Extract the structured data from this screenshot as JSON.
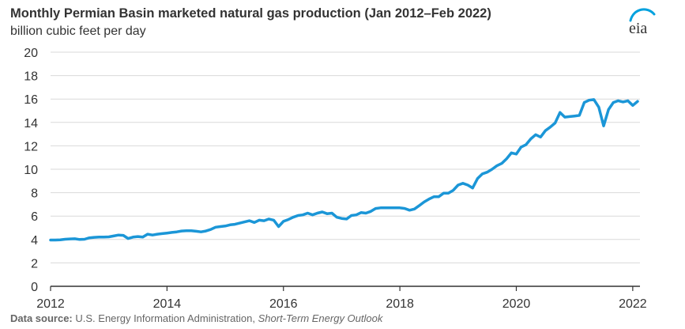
{
  "header": {
    "title": "Monthly Permian Basin marketed natural gas production (Jan 2012–Feb 2022)",
    "subtitle": "billion cubic feet per day"
  },
  "logo": {
    "text": "eia",
    "icon": "eia-logo-icon",
    "color": "#00a1de"
  },
  "source": {
    "label": "Data source:",
    "agency": "U.S. Energy Information Administration,",
    "publication": "Short-Term Energy Outlook"
  },
  "chart_data": {
    "type": "line",
    "title": "Monthly Permian Basin marketed natural gas production (Jan 2012–Feb 2022)",
    "ylabel": "billion cubic feet per day",
    "xlabel": "",
    "xlim": [
      "2012-01",
      "2022-02"
    ],
    "ylim": [
      0,
      20
    ],
    "y_ticks": [
      "0",
      "2",
      "4",
      "6",
      "8",
      "10",
      "12",
      "14",
      "16",
      "18",
      "20"
    ],
    "x_ticks": [
      "2012",
      "2014",
      "2016",
      "2018",
      "2020",
      "2022"
    ],
    "grid": "horizontal",
    "line_color": "#1b96d7",
    "series": [
      {
        "points": [
          [
            "2012-01",
            3.95
          ],
          [
            "2012-02",
            3.95
          ],
          [
            "2012-03",
            3.97
          ],
          [
            "2012-04",
            4.02
          ],
          [
            "2012-05",
            4.05
          ],
          [
            "2012-06",
            4.06
          ],
          [
            "2012-07",
            4.0
          ],
          [
            "2012-08",
            4.02
          ],
          [
            "2012-09",
            4.14
          ],
          [
            "2012-10",
            4.18
          ],
          [
            "2012-11",
            4.2
          ],
          [
            "2012-12",
            4.2
          ],
          [
            "2013-01",
            4.22
          ],
          [
            "2013-02",
            4.3
          ],
          [
            "2013-03",
            4.38
          ],
          [
            "2013-04",
            4.35
          ],
          [
            "2013-05",
            4.08
          ],
          [
            "2013-06",
            4.2
          ],
          [
            "2013-07",
            4.25
          ],
          [
            "2013-08",
            4.2
          ],
          [
            "2013-09",
            4.45
          ],
          [
            "2013-10",
            4.38
          ],
          [
            "2013-11",
            4.45
          ],
          [
            "2013-12",
            4.5
          ],
          [
            "2014-01",
            4.55
          ],
          [
            "2014-02",
            4.6
          ],
          [
            "2014-03",
            4.65
          ],
          [
            "2014-04",
            4.72
          ],
          [
            "2014-05",
            4.75
          ],
          [
            "2014-06",
            4.75
          ],
          [
            "2014-07",
            4.7
          ],
          [
            "2014-08",
            4.65
          ],
          [
            "2014-09",
            4.72
          ],
          [
            "2014-10",
            4.85
          ],
          [
            "2014-11",
            5.05
          ],
          [
            "2014-12",
            5.1
          ],
          [
            "2015-01",
            5.15
          ],
          [
            "2015-02",
            5.25
          ],
          [
            "2015-03",
            5.3
          ],
          [
            "2015-04",
            5.4
          ],
          [
            "2015-05",
            5.5
          ],
          [
            "2015-06",
            5.6
          ],
          [
            "2015-07",
            5.45
          ],
          [
            "2015-08",
            5.65
          ],
          [
            "2015-09",
            5.6
          ],
          [
            "2015-10",
            5.75
          ],
          [
            "2015-11",
            5.65
          ],
          [
            "2015-12",
            5.1
          ],
          [
            "2016-01",
            5.55
          ],
          [
            "2016-02",
            5.7
          ],
          [
            "2016-03",
            5.9
          ],
          [
            "2016-04",
            6.05
          ],
          [
            "2016-05",
            6.1
          ],
          [
            "2016-06",
            6.25
          ],
          [
            "2016-07",
            6.1
          ],
          [
            "2016-08",
            6.25
          ],
          [
            "2016-09",
            6.35
          ],
          [
            "2016-10",
            6.2
          ],
          [
            "2016-11",
            6.25
          ],
          [
            "2016-12",
            5.9
          ],
          [
            "2017-01",
            5.8
          ],
          [
            "2017-02",
            5.75
          ],
          [
            "2017-03",
            6.05
          ],
          [
            "2017-04",
            6.1
          ],
          [
            "2017-05",
            6.3
          ],
          [
            "2017-06",
            6.25
          ],
          [
            "2017-07",
            6.4
          ],
          [
            "2017-08",
            6.65
          ],
          [
            "2017-09",
            6.7
          ],
          [
            "2017-10",
            6.7
          ],
          [
            "2017-11",
            6.7
          ],
          [
            "2017-12",
            6.7
          ],
          [
            "2018-01",
            6.7
          ],
          [
            "2018-02",
            6.65
          ],
          [
            "2018-03",
            6.5
          ],
          [
            "2018-04",
            6.6
          ],
          [
            "2018-05",
            6.9
          ],
          [
            "2018-06",
            7.2
          ],
          [
            "2018-07",
            7.45
          ],
          [
            "2018-08",
            7.65
          ],
          [
            "2018-09",
            7.65
          ],
          [
            "2018-10",
            7.95
          ],
          [
            "2018-11",
            7.95
          ],
          [
            "2018-12",
            8.2
          ],
          [
            "2019-01",
            8.65
          ],
          [
            "2019-02",
            8.8
          ],
          [
            "2019-03",
            8.65
          ],
          [
            "2019-04",
            8.4
          ],
          [
            "2019-05",
            9.2
          ],
          [
            "2019-06",
            9.6
          ],
          [
            "2019-07",
            9.75
          ],
          [
            "2019-08",
            10.0
          ],
          [
            "2019-09",
            10.3
          ],
          [
            "2019-10",
            10.5
          ],
          [
            "2019-11",
            10.9
          ],
          [
            "2019-12",
            11.4
          ],
          [
            "2020-01",
            11.3
          ],
          [
            "2020-02",
            11.9
          ],
          [
            "2020-03",
            12.1
          ],
          [
            "2020-04",
            12.6
          ],
          [
            "2020-05",
            12.95
          ],
          [
            "2020-06",
            12.75
          ],
          [
            "2020-07",
            13.3
          ],
          [
            "2020-08",
            13.6
          ],
          [
            "2020-09",
            13.95
          ],
          [
            "2020-10",
            14.85
          ],
          [
            "2020-11",
            14.45
          ],
          [
            "2020-12",
            14.5
          ],
          [
            "2021-01",
            14.55
          ],
          [
            "2021-02",
            14.6
          ],
          [
            "2021-03",
            15.7
          ],
          [
            "2021-04",
            15.9
          ],
          [
            "2021-05",
            15.95
          ],
          [
            "2021-06",
            15.3
          ],
          [
            "2021-07",
            13.7
          ],
          [
            "2021-08",
            15.1
          ],
          [
            "2021-09",
            15.7
          ],
          [
            "2021-10",
            15.85
          ],
          [
            "2021-11",
            15.75
          ],
          [
            "2021-12",
            15.85
          ],
          [
            "2022-01",
            15.45
          ],
          [
            "2022-02",
            15.8
          ]
        ]
      }
    ]
  }
}
